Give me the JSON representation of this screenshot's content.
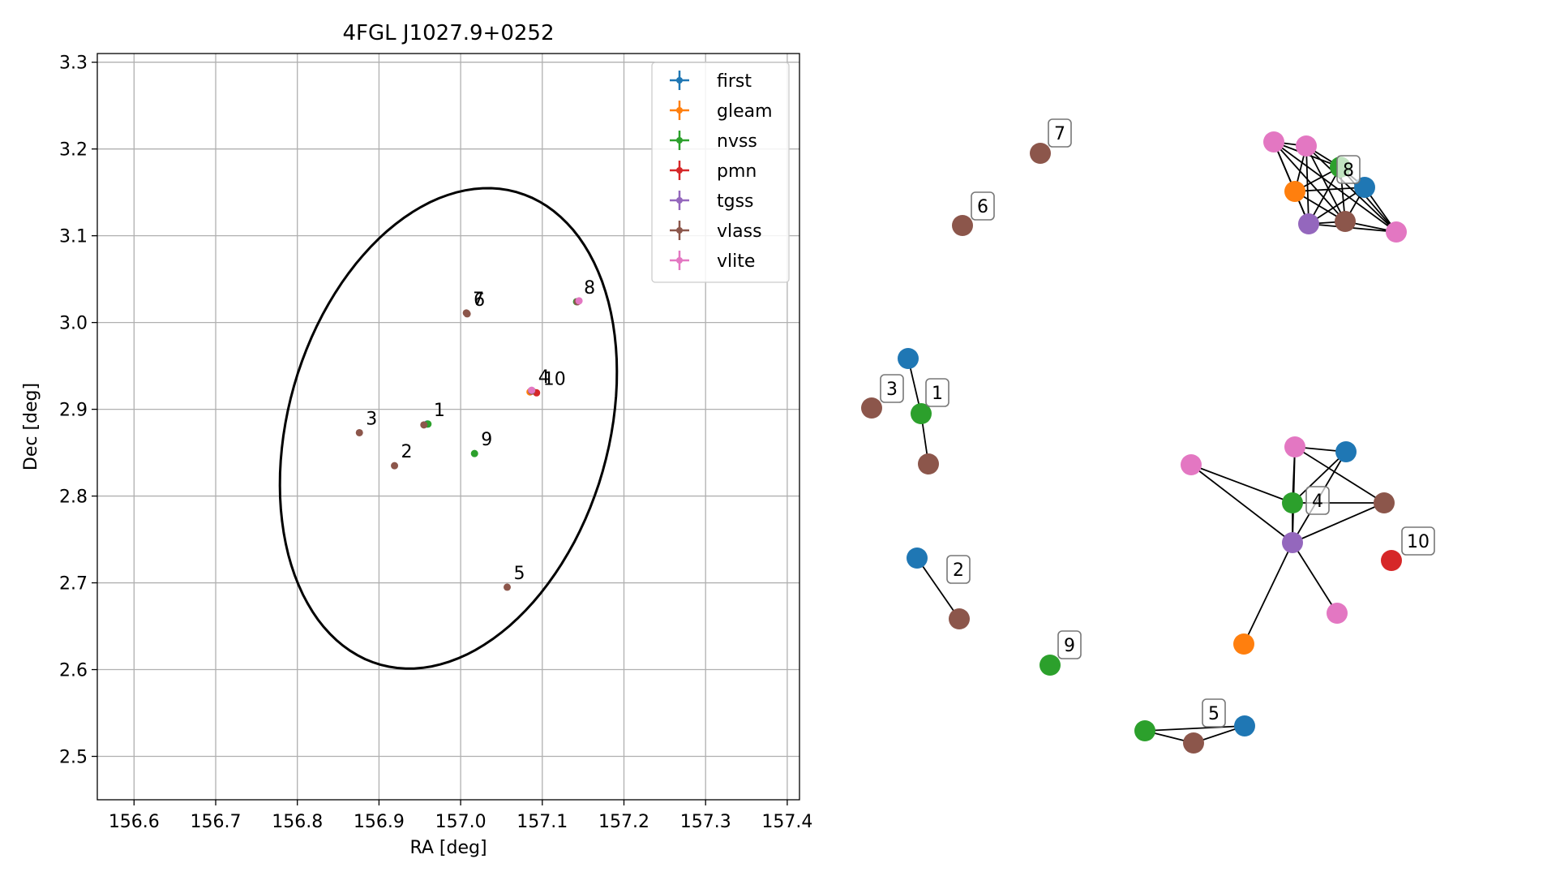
{
  "chart_data": [
    {
      "type": "scatter",
      "title": "4FGL J1027.9+0252",
      "xlabel": "RA [deg]",
      "ylabel": "Dec [deg]",
      "xlim": [
        156.555,
        157.415
      ],
      "ylim": [
        2.45,
        3.31
      ],
      "xticks": [
        156.6,
        156.7,
        156.8,
        156.9,
        157.0,
        157.1,
        157.2,
        157.3,
        157.4
      ],
      "xtick_labels": [
        "156.6",
        "156.7",
        "156.8",
        "156.9",
        "157.0",
        "157.1",
        "157.2",
        "157.3",
        "157.4"
      ],
      "yticks": [
        2.5,
        2.6,
        2.7,
        2.8,
        2.9,
        3.0,
        3.1,
        3.2,
        3.3
      ],
      "ytick_labels": [
        "2.5",
        "2.6",
        "2.7",
        "2.8",
        "2.9",
        "3.0",
        "3.1",
        "3.2",
        "3.3"
      ],
      "grid": true,
      "legend_position": "top-right",
      "ellipse": {
        "center": [
          156.985,
          2.878
        ],
        "semi_major": 0.285,
        "semi_minor": 0.195,
        "angle_deg": 71
      },
      "series": [
        {
          "name": "first",
          "color": "#1f77b4",
          "points": [
            [
              156.959,
              2.883
            ],
            [
              157.086,
              2.921
            ]
          ]
        },
        {
          "name": "gleam",
          "color": "#ff7f0e",
          "points": [
            [
              157.085,
              2.92
            ],
            [
              157.143,
              3.024
            ]
          ]
        },
        {
          "name": "nvss",
          "color": "#2ca02c",
          "points": [
            [
              156.96,
              2.883
            ],
            [
              157.017,
              2.849
            ],
            [
              157.088,
              2.921
            ],
            [
              157.142,
              3.024
            ]
          ]
        },
        {
          "name": "pmn",
          "color": "#d62728",
          "points": [
            [
              157.093,
              2.919
            ]
          ]
        },
        {
          "name": "tgss",
          "color": "#9467bd",
          "points": [
            [
              157.087,
              2.921
            ],
            [
              157.143,
              3.024
            ]
          ]
        },
        {
          "name": "vlass",
          "color": "#8c564b",
          "points": [
            [
              156.955,
              2.882
            ],
            [
              156.919,
              2.835
            ],
            [
              156.876,
              2.873
            ],
            [
              157.087,
              2.921
            ],
            [
              157.057,
              2.695
            ],
            [
              157.007,
              3.011
            ],
            [
              157.008,
              3.01
            ],
            [
              157.143,
              3.024
            ]
          ]
        },
        {
          "name": "vlite",
          "color": "#e377c2",
          "points": [
            [
              157.087,
              2.922
            ],
            [
              157.145,
              3.025
            ]
          ]
        }
      ],
      "annotations": [
        {
          "text": "1",
          "x": 156.959,
          "y": 2.883
        },
        {
          "text": "2",
          "x": 156.919,
          "y": 2.835
        },
        {
          "text": "3",
          "x": 156.876,
          "y": 2.873
        },
        {
          "text": "4",
          "x": 157.087,
          "y": 2.921
        },
        {
          "text": "5",
          "x": 157.057,
          "y": 2.695
        },
        {
          "text": "6",
          "x": 157.008,
          "y": 3.01
        },
        {
          "text": "7",
          "x": 157.007,
          "y": 3.011
        },
        {
          "text": "8",
          "x": 157.143,
          "y": 3.024
        },
        {
          "text": "9",
          "x": 157.017,
          "y": 2.849
        },
        {
          "text": "10",
          "x": 157.093,
          "y": 2.919
        }
      ]
    },
    {
      "type": "network",
      "groups": [
        {
          "label": "1",
          "nodes": [
            {
              "survey": "first",
              "color": "#1f77b4"
            },
            {
              "survey": "nvss",
              "color": "#2ca02c"
            },
            {
              "survey": "vlass",
              "color": "#8c564b"
            }
          ]
        },
        {
          "label": "2",
          "nodes": [
            {
              "survey": "first",
              "color": "#1f77b4"
            },
            {
              "survey": "vlass",
              "color": "#8c564b"
            }
          ]
        },
        {
          "label": "3",
          "nodes": [
            {
              "survey": "vlass",
              "color": "#8c564b"
            }
          ]
        },
        {
          "label": "4",
          "nodes": [
            {
              "survey": "nvss",
              "color": "#2ca02c"
            },
            {
              "survey": "vlite",
              "color": "#e377c2"
            },
            {
              "survey": "first",
              "color": "#1f77b4"
            },
            {
              "survey": "vlite",
              "color": "#e377c2"
            },
            {
              "survey": "vlass",
              "color": "#8c564b"
            },
            {
              "survey": "tgss",
              "color": "#9467bd"
            },
            {
              "survey": "vlite",
              "color": "#e377c2"
            },
            {
              "survey": "gleam",
              "color": "#ff7f0e"
            }
          ]
        },
        {
          "label": "5",
          "nodes": [
            {
              "survey": "nvss",
              "color": "#2ca02c"
            },
            {
              "survey": "vlass",
              "color": "#8c564b"
            },
            {
              "survey": "first",
              "color": "#1f77b4"
            }
          ]
        },
        {
          "label": "6",
          "nodes": [
            {
              "survey": "vlass",
              "color": "#8c564b"
            }
          ]
        },
        {
          "label": "7",
          "nodes": [
            {
              "survey": "vlass",
              "color": "#8c564b"
            }
          ]
        },
        {
          "label": "8",
          "nodes": [
            {
              "survey": "nvss",
              "color": "#2ca02c"
            },
            {
              "survey": "vlite",
              "color": "#e377c2"
            },
            {
              "survey": "vlite",
              "color": "#e377c2"
            },
            {
              "survey": "gleam",
              "color": "#ff7f0e"
            },
            {
              "survey": "first",
              "color": "#1f77b4"
            },
            {
              "survey": "tgss",
              "color": "#9467bd"
            },
            {
              "survey": "vlass",
              "color": "#8c564b"
            },
            {
              "survey": "vlite",
              "color": "#e377c2"
            }
          ]
        },
        {
          "label": "9",
          "nodes": [
            {
              "survey": "nvss",
              "color": "#2ca02c"
            }
          ]
        },
        {
          "label": "10",
          "nodes": [
            {
              "survey": "pmn",
              "color": "#d62728"
            }
          ]
        }
      ]
    }
  ]
}
